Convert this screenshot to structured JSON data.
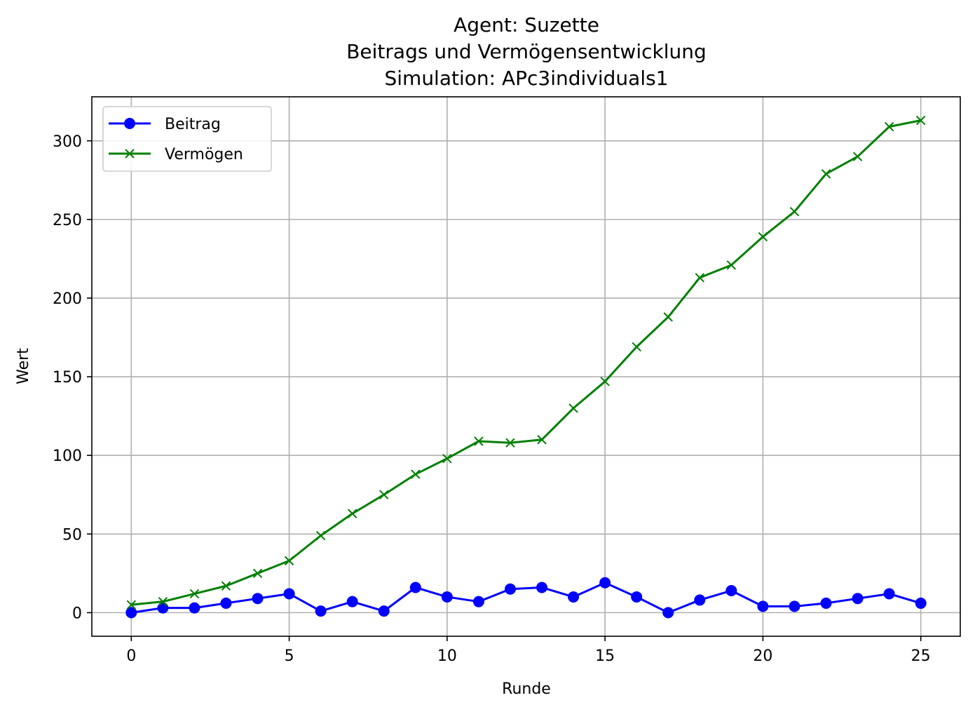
{
  "chart_data": {
    "type": "line",
    "title": [
      "Agent: Suzette",
      "Beitrags und Vermögensentwicklung",
      "Simulation: APc3individuals1"
    ],
    "xlabel": "Runde",
    "ylabel": "Wert",
    "xlim": [
      -1.25,
      26.25
    ],
    "ylim": [
      -15,
      328
    ],
    "xticks": [
      0,
      5,
      10,
      15,
      20,
      25
    ],
    "yticks": [
      0,
      50,
      100,
      150,
      200,
      250,
      300
    ],
    "grid": true,
    "legend_position": "upper-left",
    "x": [
      0,
      1,
      2,
      3,
      4,
      5,
      6,
      7,
      8,
      9,
      10,
      11,
      12,
      13,
      14,
      15,
      16,
      17,
      18,
      19,
      20,
      21,
      22,
      23,
      24,
      25
    ],
    "series": [
      {
        "name": "Beitrag",
        "color": "#0000ff",
        "marker": "circle",
        "values": [
          0,
          3,
          3,
          6,
          9,
          12,
          1,
          7,
          1,
          16,
          10,
          7,
          15,
          16,
          10,
          19,
          10,
          0,
          8,
          14,
          4,
          4,
          6,
          9,
          12,
          6
        ]
      },
      {
        "name": "Vermögen",
        "color": "#008000",
        "marker": "x",
        "values": [
          5,
          7,
          12,
          17,
          25,
          33,
          49,
          63,
          75,
          88,
          98,
          109,
          108,
          110,
          130,
          147,
          169,
          188,
          213,
          221,
          239,
          255,
          279,
          290,
          309,
          313
        ]
      }
    ]
  }
}
